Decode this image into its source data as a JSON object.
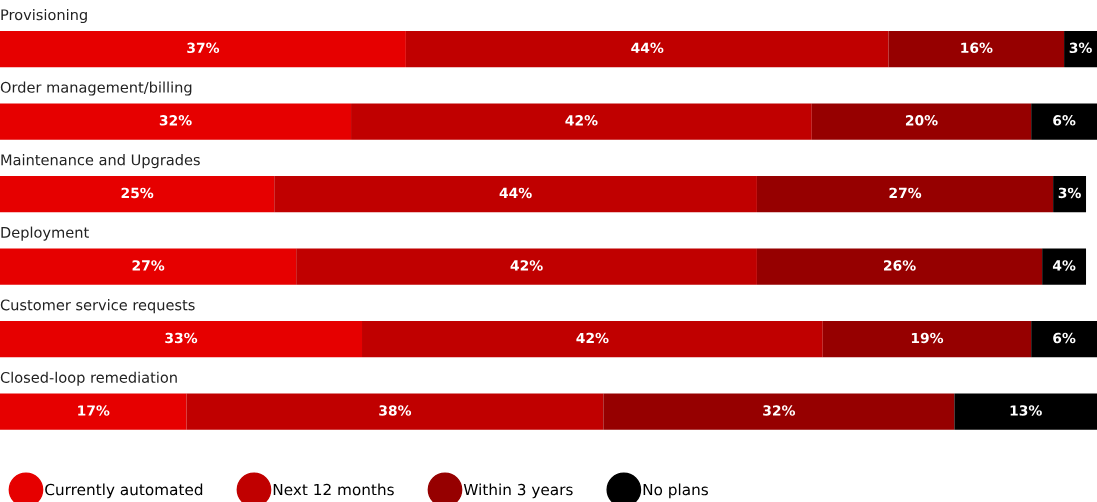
{
  "chart_data": {
    "type": "bar",
    "orientation": "horizontal",
    "stacked": true,
    "categories": [
      "Provisioning",
      "Order management/billing",
      "Maintenance and Upgrades",
      "Deployment",
      "Customer service requests",
      "Closed-loop remediation"
    ],
    "series": [
      {
        "name": "Currently automated",
        "color": "#e60000",
        "values": [
          37,
          32,
          25,
          27,
          33,
          17
        ],
        "value_labels": [
          "37%",
          "32%",
          "25%",
          "27%",
          "33%",
          "17%"
        ]
      },
      {
        "name": "Next 12 months",
        "color": "#c00000",
        "values": [
          44,
          42,
          44,
          42,
          42,
          38
        ],
        "value_labels": [
          "44%",
          "42%",
          "44%",
          "42%",
          "42%",
          "38%"
        ]
      },
      {
        "name": "Within 3 years",
        "color": "#960000",
        "values": [
          16,
          20,
          27,
          26,
          19,
          32
        ],
        "value_labels": [
          "16%",
          "20%",
          "27%",
          "26%",
          "19%",
          "32%"
        ]
      },
      {
        "name": "No plans",
        "color": "#000000",
        "values": [
          3,
          6,
          3,
          4,
          6,
          13
        ],
        "value_labels": [
          "3%",
          "6%",
          "3%",
          "4%",
          "6%",
          "13%"
        ]
      }
    ],
    "legend": "bottom"
  }
}
